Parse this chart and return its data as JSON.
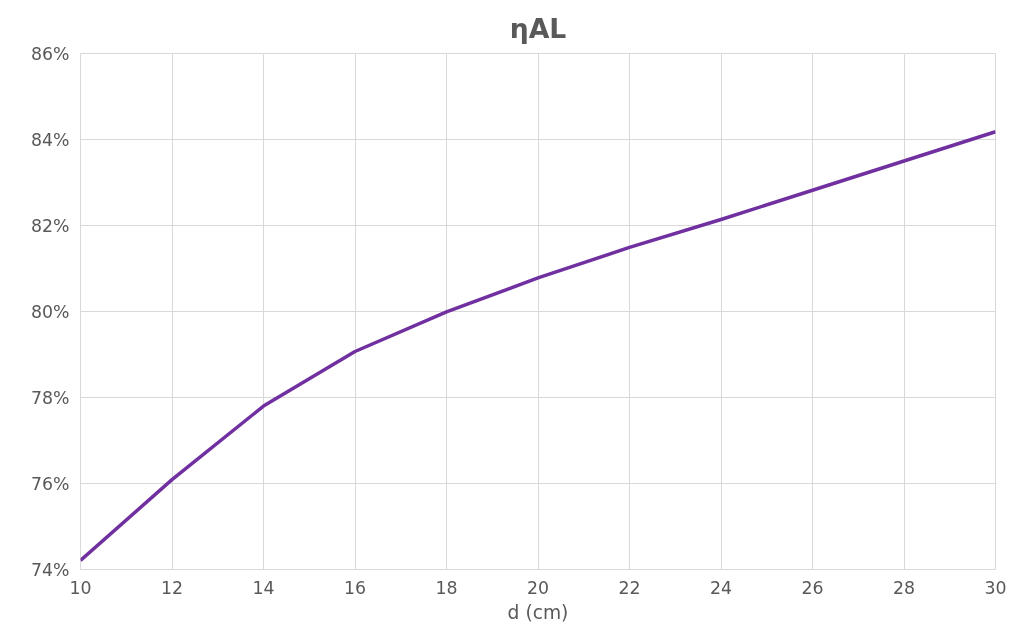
{
  "chart_data": {
    "type": "line",
    "title": "ηAL",
    "xlabel": "d (cm)",
    "x": [
      10,
      12,
      14,
      16,
      18,
      20,
      22,
      24,
      26,
      28,
      30
    ],
    "series": [
      {
        "color": "#7030a0",
        "values": [
          74.21,
          76.09,
          77.8,
          79.07,
          79.99,
          80.78,
          81.49,
          82.14,
          82.82,
          83.5,
          84.18
        ]
      }
    ],
    "xlim": [
      10,
      30
    ],
    "xticks": [
      10,
      12,
      14,
      16,
      18,
      20,
      22,
      24,
      26,
      28,
      30
    ],
    "ylim": [
      74,
      86
    ],
    "yticks": [
      {
        "value": 74,
        "label": "74%"
      },
      {
        "value": 76,
        "label": "76%"
      },
      {
        "value": 78,
        "label": "78%"
      },
      {
        "value": 80,
        "label": "80%"
      },
      {
        "value": 82,
        "label": "82%"
      },
      {
        "value": 84,
        "label": "84%"
      },
      {
        "value": 86,
        "label": "86%"
      }
    ],
    "grid": true,
    "marker": "none",
    "line_style": "solid"
  }
}
